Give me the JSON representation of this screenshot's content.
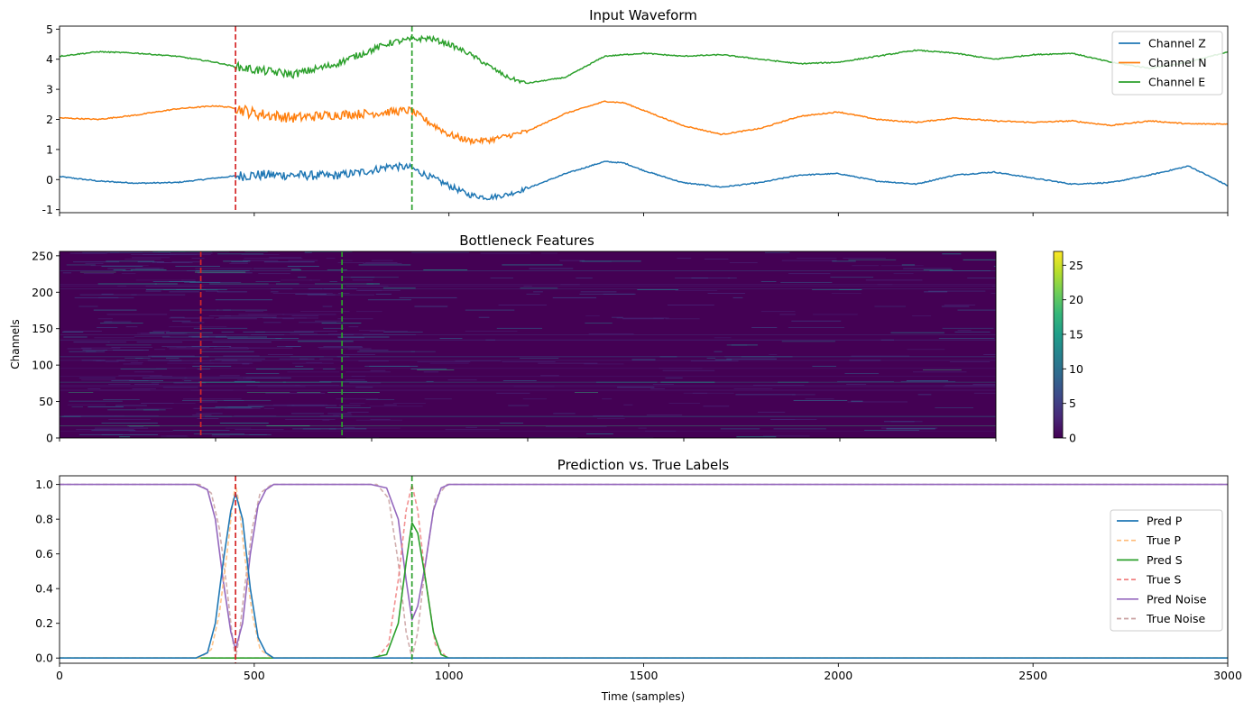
{
  "chart_data": [
    {
      "type": "line",
      "title": "Input Waveform",
      "xlabel": "",
      "ylabel": "",
      "xlim": [
        0,
        3000
      ],
      "ylim": [
        -1.1,
        5.1
      ],
      "yticks": [
        -1,
        0,
        1,
        2,
        3,
        4,
        5
      ],
      "xtick_values": [
        0,
        500,
        1000,
        1500,
        2000,
        2500,
        3000
      ],
      "xtick_labels_shown": false,
      "legend_position": "top-right",
      "vlines": [
        {
          "x": 452,
          "color": "#d62728",
          "style": "dashed"
        },
        {
          "x": 905,
          "color": "#2ca02c",
          "style": "dashed"
        }
      ],
      "series": [
        {
          "name": "Channel Z",
          "color": "#1f77b4",
          "x": [
            0,
            100,
            200,
            300,
            400,
            452,
            500,
            600,
            700,
            750,
            800,
            850,
            900,
            950,
            1000,
            1050,
            1100,
            1150,
            1200,
            1300,
            1400,
            1450,
            1500,
            1600,
            1700,
            1800,
            1900,
            2000,
            2100,
            2200,
            2300,
            2400,
            2500,
            2600,
            2700,
            2800,
            2900,
            3000
          ],
          "y": [
            0.1,
            -0.05,
            -0.12,
            -0.1,
            0.05,
            0.12,
            0.15,
            0.15,
            0.12,
            0.2,
            0.3,
            0.45,
            0.4,
            0.1,
            -0.2,
            -0.5,
            -0.6,
            -0.5,
            -0.3,
            0.2,
            0.6,
            0.55,
            0.3,
            -0.1,
            -0.25,
            -0.1,
            0.15,
            0.2,
            -0.05,
            -0.15,
            0.15,
            0.25,
            0.05,
            -0.15,
            -0.1,
            0.15,
            0.45,
            -0.2
          ],
          "noise_region": [
            452,
            1200
          ],
          "noise_amplitude": 0.18
        },
        {
          "name": "Channel N",
          "color": "#ff7f0e",
          "x": [
            0,
            100,
            200,
            300,
            400,
            452,
            500,
            600,
            700,
            800,
            850,
            900,
            950,
            1000,
            1050,
            1100,
            1200,
            1300,
            1400,
            1450,
            1500,
            1600,
            1700,
            1800,
            1900,
            2000,
            2100,
            2200,
            2300,
            2400,
            2500,
            2600,
            2700,
            2800,
            2900,
            3000
          ],
          "y": [
            2.05,
            2.0,
            2.15,
            2.35,
            2.45,
            2.38,
            2.2,
            2.05,
            2.15,
            2.2,
            2.25,
            2.3,
            1.9,
            1.5,
            1.3,
            1.3,
            1.6,
            2.2,
            2.6,
            2.55,
            2.3,
            1.8,
            1.5,
            1.7,
            2.1,
            2.25,
            2.0,
            1.9,
            2.05,
            1.95,
            1.9,
            1.95,
            1.8,
            1.95,
            1.85,
            1.85
          ],
          "noise_region": [
            452,
            1200
          ],
          "noise_amplitude": 0.2
        },
        {
          "name": "Channel E",
          "color": "#2ca02c",
          "x": [
            0,
            100,
            200,
            300,
            400,
            452,
            500,
            600,
            700,
            800,
            850,
            900,
            950,
            1000,
            1050,
            1100,
            1150,
            1200,
            1300,
            1400,
            1500,
            1600,
            1700,
            1800,
            1900,
            2000,
            2100,
            2200,
            2300,
            2400,
            2500,
            2600,
            2700,
            2800,
            2900,
            3000
          ],
          "y": [
            4.1,
            4.25,
            4.2,
            4.1,
            3.9,
            3.75,
            3.65,
            3.5,
            3.8,
            4.3,
            4.55,
            4.65,
            4.7,
            4.5,
            4.2,
            3.8,
            3.4,
            3.2,
            3.4,
            4.1,
            4.2,
            4.1,
            4.15,
            4.0,
            3.85,
            3.9,
            4.1,
            4.3,
            4.2,
            4.0,
            4.15,
            4.2,
            3.9,
            3.7,
            3.9,
            4.25
          ],
          "noise_region": [
            452,
            1200
          ],
          "noise_amplitude": 0.15
        }
      ]
    },
    {
      "type": "heatmap",
      "title": "Bottleneck Features",
      "xlabel": "",
      "ylabel": "Channels",
      "xlim": [
        0,
        2400
      ],
      "ylim": [
        0,
        256
      ],
      "yticks": [
        0,
        50,
        100,
        150,
        200,
        250
      ],
      "xtick_values": [
        0,
        400,
        800,
        1200,
        1600,
        2000,
        2400
      ],
      "xtick_labels_shown": false,
      "colormap": "viridis",
      "colorbar_range": [
        0,
        27
      ],
      "colorbar_ticks": [
        0,
        5,
        10,
        15,
        20,
        25
      ],
      "background_value": 0,
      "vlines": [
        {
          "x": 362,
          "color": "#d62728",
          "style": "dashed"
        },
        {
          "x": 724,
          "color": "#2ca02c",
          "style": "dashed"
        }
      ]
    },
    {
      "type": "line",
      "title": "Prediction vs. True Labels",
      "xlabel": "Time (samples)",
      "ylabel": "",
      "xlim": [
        0,
        3000
      ],
      "ylim": [
        -0.03,
        1.05
      ],
      "yticks": [
        0.0,
        0.2,
        0.4,
        0.6,
        0.8,
        1.0
      ],
      "xticks": [
        0,
        500,
        1000,
        1500,
        2000,
        2500,
        3000
      ],
      "legend_position": "center-right",
      "vlines": [
        {
          "x": 452,
          "color": "#d62728",
          "style": "dashed"
        },
        {
          "x": 905,
          "color": "#2ca02c",
          "style": "dashed"
        }
      ],
      "series": [
        {
          "name": "Pred P",
          "color": "#1f77b4",
          "style": "solid",
          "x": [
            0,
            350,
            380,
            400,
            420,
            440,
            452,
            470,
            490,
            510,
            530,
            550,
            3000
          ],
          "y": [
            0,
            0,
            0.03,
            0.2,
            0.55,
            0.85,
            0.95,
            0.8,
            0.4,
            0.12,
            0.03,
            0,
            0
          ]
        },
        {
          "name": "True P",
          "color": "#ffbb78",
          "style": "dashed",
          "x": [
            0,
            360,
            390,
            410,
            430,
            445,
            452,
            460,
            475,
            495,
            515,
            545,
            3000
          ],
          "y": [
            0,
            0,
            0.05,
            0.25,
            0.6,
            0.9,
            1.0,
            0.9,
            0.6,
            0.25,
            0.05,
            0,
            0
          ]
        },
        {
          "name": "Pred S",
          "color": "#2ca02c",
          "style": "solid",
          "x": [
            0,
            800,
            840,
            870,
            890,
            905,
            920,
            940,
            960,
            980,
            1000,
            3000
          ],
          "y": [
            0,
            0,
            0.02,
            0.2,
            0.55,
            0.78,
            0.72,
            0.45,
            0.15,
            0.02,
            0,
            0
          ]
        },
        {
          "name": "True S",
          "color": "#e377c2",
          "style": "dashed",
          "display_color": "#f08080",
          "x": [
            0,
            815,
            845,
            870,
            890,
            905,
            920,
            940,
            965,
            995,
            3000
          ],
          "y": [
            0,
            0,
            0.08,
            0.45,
            0.85,
            1.0,
            0.85,
            0.45,
            0.08,
            0,
            0
          ]
        },
        {
          "name": "Pred Noise",
          "color": "#9467bd",
          "style": "solid",
          "x": [
            0,
            350,
            380,
            400,
            420,
            440,
            452,
            470,
            490,
            510,
            530,
            550,
            800,
            840,
            870,
            890,
            905,
            920,
            940,
            960,
            980,
            1000,
            3000
          ],
          "y": [
            1,
            1,
            0.97,
            0.8,
            0.45,
            0.15,
            0.05,
            0.2,
            0.6,
            0.88,
            0.97,
            1,
            1,
            0.98,
            0.8,
            0.45,
            0.22,
            0.3,
            0.55,
            0.85,
            0.98,
            1,
            1
          ]
        },
        {
          "name": "True Noise",
          "color": "#c5b0d5",
          "style": "dashed",
          "display_color": "#c9a0a0",
          "x": [
            0,
            360,
            390,
            410,
            430,
            445,
            452,
            460,
            475,
            495,
            515,
            545,
            815,
            845,
            870,
            890,
            905,
            920,
            940,
            965,
            995,
            3000
          ],
          "y": [
            1,
            1,
            0.95,
            0.75,
            0.4,
            0.1,
            0.0,
            0.1,
            0.4,
            0.75,
            0.95,
            1,
            1,
            0.92,
            0.55,
            0.15,
            0.0,
            0.15,
            0.55,
            0.92,
            1,
            1
          ]
        }
      ]
    }
  ]
}
